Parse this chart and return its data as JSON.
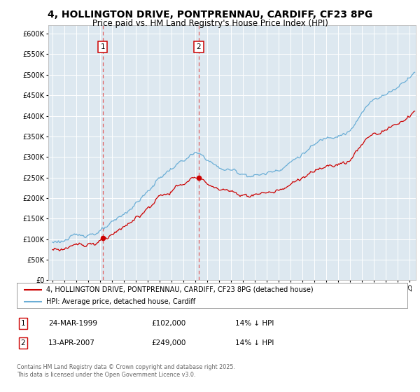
{
  "title": "4, HOLLINGTON DRIVE, PONTPRENNAU, CARDIFF, CF23 8PG",
  "subtitle": "Price paid vs. HM Land Registry's House Price Index (HPI)",
  "legend_line1": "4, HOLLINGTON DRIVE, PONTPRENNAU, CARDIFF, CF23 8PG (detached house)",
  "legend_line2": "HPI: Average price, detached house, Cardiff",
  "purchase1_date": "24-MAR-1999",
  "purchase1_price": "£102,000",
  "purchase1_hpi": "14% ↓ HPI",
  "purchase1_year": 1999.22,
  "purchase1_value": 102000,
  "purchase2_date": "13-APR-2007",
  "purchase2_price": "£249,000",
  "purchase2_hpi": "14% ↓ HPI",
  "purchase2_year": 2007.28,
  "purchase2_value": 249000,
  "ylim": [
    0,
    620000
  ],
  "yticks": [
    0,
    50000,
    100000,
    150000,
    200000,
    250000,
    300000,
    350000,
    400000,
    450000,
    500000,
    550000,
    600000
  ],
  "hpi_color": "#6baed6",
  "property_color": "#cc0000",
  "vline_color": "#e06060",
  "marker_box_color": "#cc0000",
  "background_color": "#dde8f0",
  "plot_bg": "#ffffff",
  "footnote": "Contains HM Land Registry data © Crown copyright and database right 2025.\nThis data is licensed under the Open Government Licence v3.0.",
  "title_fontsize": 10,
  "subtitle_fontsize": 8.5
}
